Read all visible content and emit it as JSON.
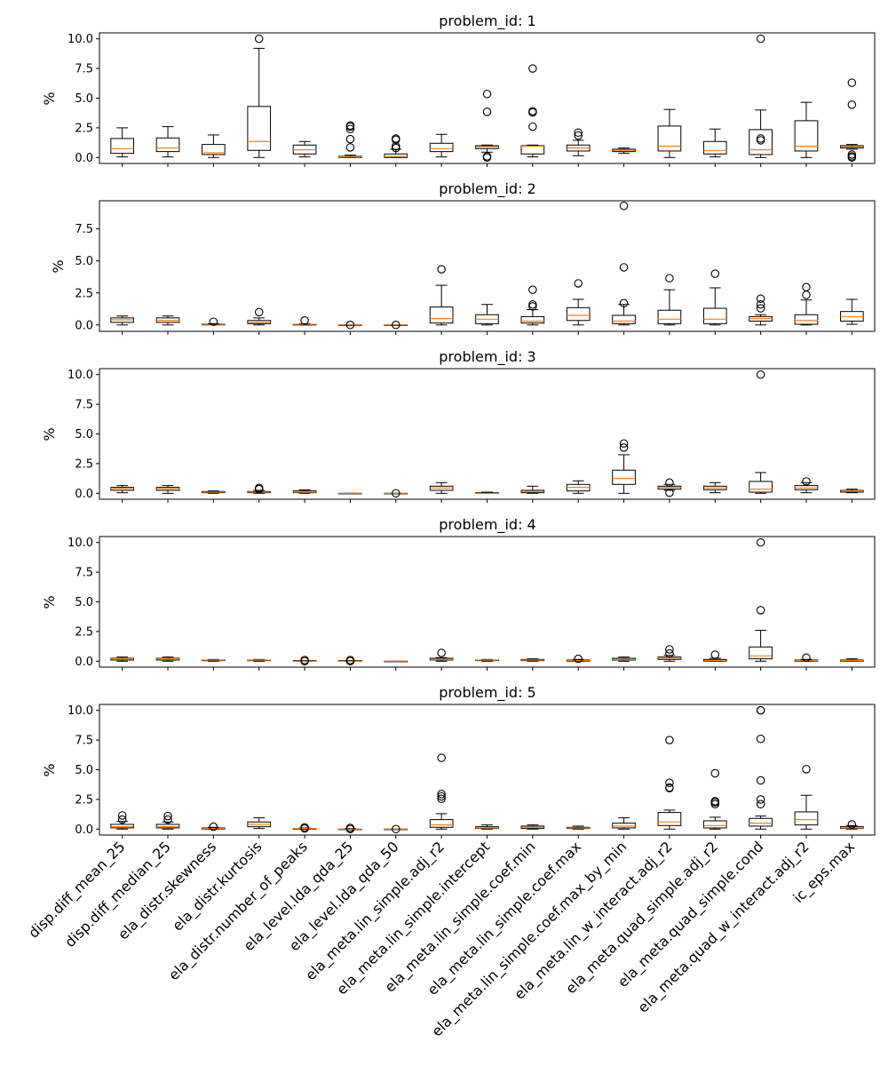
{
  "figure": {
    "background": "#ffffff",
    "box_color": "#000000",
    "median_color": "#ff7f0e",
    "y_label": "%"
  },
  "chart_data": [
    {
      "type": "box",
      "title": "problem_id: 1",
      "ylabel": "%",
      "ylim": [
        -0.5,
        10.5
      ],
      "yticks": [
        0.0,
        2.5,
        5.0,
        7.5,
        10.0
      ],
      "ytick_labels": [
        "0.0",
        "2.5",
        "5.0",
        "7.5",
        "10.0"
      ],
      "boxes": [
        {
          "whislo": 0.05,
          "q1": 0.35,
          "med": 0.75,
          "q3": 1.6,
          "whishi": 2.5,
          "fliers": []
        },
        {
          "whislo": 0.05,
          "q1": 0.5,
          "med": 0.8,
          "q3": 1.65,
          "whishi": 2.6,
          "fliers": []
        },
        {
          "whislo": 0.0,
          "q1": 0.25,
          "med": 0.4,
          "q3": 1.1,
          "whishi": 1.9,
          "fliers": []
        },
        {
          "whislo": 0.0,
          "q1": 0.6,
          "med": 1.35,
          "q3": 4.3,
          "whishi": 9.2,
          "fliers": [
            10.0
          ]
        },
        {
          "whislo": 0.05,
          "q1": 0.3,
          "med": 0.65,
          "q3": 1.05,
          "whishi": 1.35,
          "fliers": []
        },
        {
          "whislo": 0.0,
          "q1": 0.0,
          "med": 0.05,
          "q3": 0.1,
          "whishi": 0.2,
          "fliers": [
            0.85,
            1.55,
            2.4,
            2.6,
            2.7
          ]
        },
        {
          "whislo": 0.0,
          "q1": 0.0,
          "med": 0.1,
          "q3": 0.3,
          "whishi": 0.7,
          "fliers": [
            0.8,
            0.95,
            1.5,
            1.6
          ]
        },
        {
          "whislo": 0.05,
          "q1": 0.5,
          "med": 0.75,
          "q3": 1.2,
          "whishi": 1.95,
          "fliers": []
        },
        {
          "whislo": 0.45,
          "q1": 0.75,
          "med": 0.9,
          "q3": 1.0,
          "whishi": 1.05,
          "fliers": [
            0.0,
            0.1,
            3.85,
            5.35
          ]
        },
        {
          "whislo": 0.05,
          "q1": 0.3,
          "med": 0.95,
          "q3": 1.0,
          "whishi": 1.05,
          "fliers": [
            2.6,
            3.8,
            3.9,
            7.5
          ]
        },
        {
          "whislo": 0.15,
          "q1": 0.55,
          "med": 0.8,
          "q3": 1.05,
          "whishi": 1.45,
          "fliers": [
            1.85,
            2.1
          ]
        },
        {
          "whislo": 0.35,
          "q1": 0.5,
          "med": 0.6,
          "q3": 0.7,
          "whishi": 0.8,
          "fliers": []
        },
        {
          "whislo": 0.0,
          "q1": 0.55,
          "med": 0.95,
          "q3": 2.65,
          "whishi": 4.05,
          "fliers": []
        },
        {
          "whislo": 0.05,
          "q1": 0.3,
          "med": 0.6,
          "q3": 1.35,
          "whishi": 2.4,
          "fliers": []
        },
        {
          "whislo": 0.0,
          "q1": 0.25,
          "med": 0.65,
          "q3": 2.35,
          "whishi": 4.0,
          "fliers": [
            1.45,
            1.6,
            10.0
          ]
        },
        {
          "whislo": 0.0,
          "q1": 0.55,
          "med": 0.95,
          "q3": 3.1,
          "whishi": 4.65,
          "fliers": []
        },
        {
          "whislo": 0.7,
          "q1": 0.8,
          "med": 0.9,
          "q3": 1.0,
          "whishi": 1.1,
          "fliers": [
            0.0,
            0.1,
            0.25,
            4.45,
            6.3
          ]
        }
      ]
    },
    {
      "type": "box",
      "title": "problem_id: 2",
      "ylabel": "%",
      "ylim": [
        -0.5,
        9.7
      ],
      "yticks": [
        0.0,
        2.5,
        5.0,
        7.5
      ],
      "ytick_labels": [
        "0.0",
        "2.5",
        "5.0",
        "7.5"
      ],
      "boxes": [
        {
          "whislo": 0.0,
          "q1": 0.2,
          "med": 0.4,
          "q3": 0.55,
          "whishi": 0.7,
          "fliers": []
        },
        {
          "whislo": 0.0,
          "q1": 0.2,
          "med": 0.35,
          "q3": 0.55,
          "whishi": 0.7,
          "fliers": []
        },
        {
          "whislo": 0.0,
          "q1": 0.0,
          "med": 0.0,
          "q3": 0.05,
          "whishi": 0.1,
          "fliers": [
            0.25
          ]
        },
        {
          "whislo": 0.0,
          "q1": 0.1,
          "med": 0.2,
          "q3": 0.35,
          "whishi": 0.55,
          "fliers": [
            1.0
          ]
        },
        {
          "whislo": 0.0,
          "q1": 0.0,
          "med": 0.05,
          "q3": 0.05,
          "whishi": 0.1,
          "fliers": [
            0.35
          ]
        },
        {
          "whislo": 0.0,
          "q1": 0.0,
          "med": 0.0,
          "q3": 0.0,
          "whishi": 0.0,
          "fliers": [
            0.0
          ]
        },
        {
          "whislo": 0.0,
          "q1": 0.0,
          "med": 0.0,
          "q3": 0.0,
          "whishi": 0.0,
          "fliers": [
            0.0
          ]
        },
        {
          "whislo": 0.0,
          "q1": 0.15,
          "med": 0.5,
          "q3": 1.4,
          "whishi": 3.1,
          "fliers": [
            4.35
          ]
        },
        {
          "whislo": 0.0,
          "q1": 0.1,
          "med": 0.45,
          "q3": 0.8,
          "whishi": 1.6,
          "fliers": []
        },
        {
          "whislo": 0.0,
          "q1": 0.15,
          "med": 0.3,
          "q3": 0.65,
          "whishi": 1.2,
          "fliers": [
            1.45,
            1.6,
            2.75
          ]
        },
        {
          "whislo": 0.0,
          "q1": 0.35,
          "med": 0.75,
          "q3": 1.35,
          "whishi": 2.0,
          "fliers": [
            3.25
          ]
        },
        {
          "whislo": 0.0,
          "q1": 0.1,
          "med": 0.3,
          "q3": 0.75,
          "whishi": 1.6,
          "fliers": [
            1.7,
            4.5,
            9.3
          ]
        },
        {
          "whislo": 0.0,
          "q1": 0.1,
          "med": 0.45,
          "q3": 1.15,
          "whishi": 2.75,
          "fliers": [
            3.65
          ]
        },
        {
          "whislo": 0.0,
          "q1": 0.1,
          "med": 0.45,
          "q3": 1.3,
          "whishi": 2.9,
          "fliers": [
            4.0
          ]
        },
        {
          "whislo": 0.0,
          "q1": 0.3,
          "med": 0.5,
          "q3": 0.65,
          "whishi": 0.8,
          "fliers": [
            1.3,
            1.6,
            2.05
          ]
        },
        {
          "whislo": 0.0,
          "q1": 0.05,
          "med": 0.35,
          "q3": 0.8,
          "whishi": 1.95,
          "fliers": [
            2.35,
            2.95
          ]
        },
        {
          "whislo": 0.05,
          "q1": 0.3,
          "med": 0.65,
          "q3": 1.05,
          "whishi": 2.0,
          "fliers": []
        }
      ]
    },
    {
      "type": "box",
      "title": "problem_id: 3",
      "ylabel": "%",
      "ylim": [
        -0.5,
        10.5
      ],
      "yticks": [
        0.0,
        2.5,
        5.0,
        7.5,
        10.0
      ],
      "ytick_labels": [
        "0.0",
        "2.5",
        "5.0",
        "7.5",
        "10.0"
      ],
      "boxes": [
        {
          "whislo": 0.05,
          "q1": 0.25,
          "med": 0.4,
          "q3": 0.5,
          "whishi": 0.65,
          "fliers": []
        },
        {
          "whislo": 0.0,
          "q1": 0.25,
          "med": 0.4,
          "q3": 0.5,
          "whishi": 0.65,
          "fliers": []
        },
        {
          "whislo": 0.0,
          "q1": 0.05,
          "med": 0.1,
          "q3": 0.15,
          "whishi": 0.2,
          "fliers": []
        },
        {
          "whislo": 0.0,
          "q1": 0.05,
          "med": 0.1,
          "q3": 0.15,
          "whishi": 0.25,
          "fliers": [
            0.35,
            0.45
          ]
        },
        {
          "whislo": 0.0,
          "q1": 0.05,
          "med": 0.1,
          "q3": 0.2,
          "whishi": 0.3,
          "fliers": []
        },
        {
          "whislo": 0.0,
          "q1": 0.0,
          "med": 0.0,
          "q3": 0.0,
          "whishi": 0.0,
          "fliers": []
        },
        {
          "whislo": 0.0,
          "q1": 0.0,
          "med": 0.0,
          "q3": 0.0,
          "whishi": 0.0,
          "fliers": [
            0.0
          ]
        },
        {
          "whislo": 0.0,
          "q1": 0.25,
          "med": 0.45,
          "q3": 0.6,
          "whishi": 0.9,
          "fliers": []
        },
        {
          "whislo": 0.0,
          "q1": 0.0,
          "med": 0.0,
          "q3": 0.05,
          "whishi": 0.1,
          "fliers": []
        },
        {
          "whislo": 0.0,
          "q1": 0.05,
          "med": 0.15,
          "q3": 0.25,
          "whishi": 0.6,
          "fliers": []
        },
        {
          "whislo": 0.0,
          "q1": 0.2,
          "med": 0.5,
          "q3": 0.75,
          "whishi": 1.05,
          "fliers": []
        },
        {
          "whislo": 0.0,
          "q1": 0.75,
          "med": 1.25,
          "q3": 1.95,
          "whishi": 3.25,
          "fliers": [
            3.85,
            4.2
          ]
        },
        {
          "whislo": 0.25,
          "q1": 0.35,
          "med": 0.5,
          "q3": 0.6,
          "whishi": 0.75,
          "fliers": [
            0.05,
            0.9
          ]
        },
        {
          "whislo": 0.05,
          "q1": 0.3,
          "med": 0.45,
          "q3": 0.6,
          "whishi": 0.9,
          "fliers": []
        },
        {
          "whislo": 0.0,
          "q1": 0.1,
          "med": 0.35,
          "q3": 1.0,
          "whishi": 1.75,
          "fliers": [
            10.0
          ]
        },
        {
          "whislo": 0.05,
          "q1": 0.3,
          "med": 0.45,
          "q3": 0.65,
          "whishi": 0.9,
          "fliers": [
            1.0
          ]
        },
        {
          "whislo": 0.05,
          "q1": 0.1,
          "med": 0.2,
          "q3": 0.25,
          "whishi": 0.35,
          "fliers": []
        }
      ]
    },
    {
      "type": "box",
      "title": "problem_id: 4",
      "ylabel": "%",
      "ylim": [
        -0.5,
        10.5
      ],
      "yticks": [
        0.0,
        2.5,
        5.0,
        7.5,
        10.0
      ],
      "ytick_labels": [
        "0.0",
        "2.5",
        "5.0",
        "7.5",
        "10.0"
      ],
      "boxes": [
        {
          "whislo": 0.0,
          "q1": 0.1,
          "med": 0.2,
          "q3": 0.25,
          "whishi": 0.35,
          "fliers": []
        },
        {
          "whislo": 0.0,
          "q1": 0.1,
          "med": 0.2,
          "q3": 0.25,
          "whishi": 0.35,
          "fliers": []
        },
        {
          "whislo": 0.0,
          "q1": 0.05,
          "med": 0.1,
          "q3": 0.1,
          "whishi": 0.15,
          "fliers": []
        },
        {
          "whislo": 0.0,
          "q1": 0.05,
          "med": 0.1,
          "q3": 0.1,
          "whishi": 0.15,
          "fliers": []
        },
        {
          "whislo": 0.0,
          "q1": 0.0,
          "med": 0.0,
          "q3": 0.05,
          "whishi": 0.05,
          "fliers": [
            0.0,
            0.1
          ]
        },
        {
          "whislo": 0.0,
          "q1": 0.0,
          "med": 0.0,
          "q3": 0.05,
          "whishi": 0.05,
          "fliers": [
            0.0,
            0.1
          ]
        },
        {
          "whislo": 0.0,
          "q1": 0.0,
          "med": 0.0,
          "q3": 0.0,
          "whishi": 0.0,
          "fliers": []
        },
        {
          "whislo": 0.0,
          "q1": 0.1,
          "med": 0.15,
          "q3": 0.25,
          "whishi": 0.3,
          "fliers": [
            0.7
          ]
        },
        {
          "whislo": 0.0,
          "q1": 0.05,
          "med": 0.1,
          "q3": 0.1,
          "whishi": 0.15,
          "fliers": []
        },
        {
          "whislo": 0.0,
          "q1": 0.05,
          "med": 0.1,
          "q3": 0.15,
          "whishi": 0.2,
          "fliers": []
        },
        {
          "whislo": 0.0,
          "q1": 0.0,
          "med": 0.05,
          "q3": 0.1,
          "whishi": 0.15,
          "fliers": [
            0.2
          ]
        },
        {
          "whislo": 0.0,
          "q1": 0.1,
          "med": 0.15,
          "q3": 0.25,
          "whishi": 0.35,
          "fliers": []
        },
        {
          "whislo": 0.0,
          "q1": 0.15,
          "med": 0.25,
          "q3": 0.35,
          "whishi": 0.5,
          "fliers": [
            0.65,
            1.0
          ]
        },
        {
          "whislo": 0.0,
          "q1": 0.0,
          "med": 0.05,
          "q3": 0.15,
          "whishi": 0.25,
          "fliers": [
            0.55
          ]
        },
        {
          "whislo": 0.0,
          "q1": 0.2,
          "med": 0.45,
          "q3": 1.2,
          "whishi": 2.6,
          "fliers": [
            4.3,
            10.0
          ]
        },
        {
          "whislo": 0.0,
          "q1": 0.0,
          "med": 0.05,
          "q3": 0.1,
          "whishi": 0.15,
          "fliers": [
            0.3
          ]
        },
        {
          "whislo": 0.0,
          "q1": 0.0,
          "med": 0.05,
          "q3": 0.1,
          "whishi": 0.2,
          "fliers": []
        }
      ]
    },
    {
      "type": "box",
      "title": "problem_id: 5",
      "ylabel": "%",
      "ylim": [
        -0.5,
        10.5
      ],
      "yticks": [
        0.0,
        2.5,
        5.0,
        7.5,
        10.0
      ],
      "ytick_labels": [
        "0.0",
        "2.5",
        "5.0",
        "7.5",
        "10.0"
      ],
      "xtick_labels": [
        "disp.diff_mean_25",
        "disp.diff_median_25",
        "ela_distr.skewness",
        "ela_distr.kurtosis",
        "ela_distr.number_of_peaks",
        "ela_level.lda_qda_25",
        "ela_level.lda_qda_50",
        "ela_meta.lin_simple.adj_r2",
        "ela_meta.lin_simple.intercept",
        "ela_meta.lin_simple.coef.min",
        "ela_meta.lin_simple.coef.max",
        "ela_meta.lin_simple.coef.max_by_min",
        "ela_meta.lin_w_interact.adj_r2",
        "ela_meta.quad_simple.adj_r2",
        "ela_meta.quad_simple.cond",
        "ela_meta.quad_w_interact.adj_r2",
        "ic_eps.max"
      ],
      "boxes": [
        {
          "whislo": 0.0,
          "q1": 0.1,
          "med": 0.2,
          "q3": 0.4,
          "whishi": 0.65,
          "fliers": [
            0.8,
            1.15
          ]
        },
        {
          "whislo": 0.0,
          "q1": 0.1,
          "med": 0.2,
          "q3": 0.4,
          "whishi": 0.6,
          "fliers": [
            0.8,
            1.1
          ]
        },
        {
          "whislo": 0.0,
          "q1": 0.0,
          "med": 0.05,
          "q3": 0.1,
          "whishi": 0.15,
          "fliers": [
            0.2
          ]
        },
        {
          "whislo": 0.05,
          "q1": 0.2,
          "med": 0.4,
          "q3": 0.6,
          "whishi": 0.95,
          "fliers": []
        },
        {
          "whislo": 0.0,
          "q1": 0.0,
          "med": 0.05,
          "q3": 0.05,
          "whishi": 0.1,
          "fliers": [
            0.05,
            0.15
          ]
        },
        {
          "whislo": 0.0,
          "q1": 0.0,
          "med": 0.0,
          "q3": 0.0,
          "whishi": 0.05,
          "fliers": [
            0.0,
            0.1
          ]
        },
        {
          "whislo": 0.0,
          "q1": 0.0,
          "med": 0.0,
          "q3": 0.0,
          "whishi": 0.0,
          "fliers": [
            0.0
          ]
        },
        {
          "whislo": 0.0,
          "q1": 0.15,
          "med": 0.35,
          "q3": 0.8,
          "whishi": 1.3,
          "fliers": [
            2.55,
            2.75,
            2.95,
            6.0
          ]
        },
        {
          "whislo": 0.0,
          "q1": 0.05,
          "med": 0.1,
          "q3": 0.2,
          "whishi": 0.35,
          "fliers": []
        },
        {
          "whislo": 0.0,
          "q1": 0.05,
          "med": 0.15,
          "q3": 0.25,
          "whishi": 0.35,
          "fliers": []
        },
        {
          "whislo": 0.0,
          "q1": 0.05,
          "med": 0.1,
          "q3": 0.15,
          "whishi": 0.25,
          "fliers": []
        },
        {
          "whislo": 0.0,
          "q1": 0.1,
          "med": 0.25,
          "q3": 0.5,
          "whishi": 0.95,
          "fliers": []
        },
        {
          "whislo": 0.0,
          "q1": 0.3,
          "med": 0.6,
          "q3": 1.4,
          "whishi": 1.6,
          "fliers": [
            3.45,
            3.5,
            3.9,
            7.5
          ]
        },
        {
          "whislo": 0.0,
          "q1": 0.1,
          "med": 0.3,
          "q3": 0.7,
          "whishi": 1.0,
          "fliers": [
            2.1,
            2.25,
            2.35,
            4.7
          ]
        },
        {
          "whislo": 0.0,
          "q1": 0.25,
          "med": 0.5,
          "q3": 0.9,
          "whishi": 1.1,
          "fliers": [
            2.1,
            2.5,
            4.1,
            7.6,
            10.0,
            10.0
          ]
        },
        {
          "whislo": 0.0,
          "q1": 0.35,
          "med": 0.8,
          "q3": 1.45,
          "whishi": 2.85,
          "fliers": [
            5.05
          ]
        },
        {
          "whislo": 0.0,
          "q1": 0.05,
          "med": 0.1,
          "q3": 0.2,
          "whishi": 0.3,
          "fliers": [
            0.4
          ]
        }
      ]
    }
  ]
}
